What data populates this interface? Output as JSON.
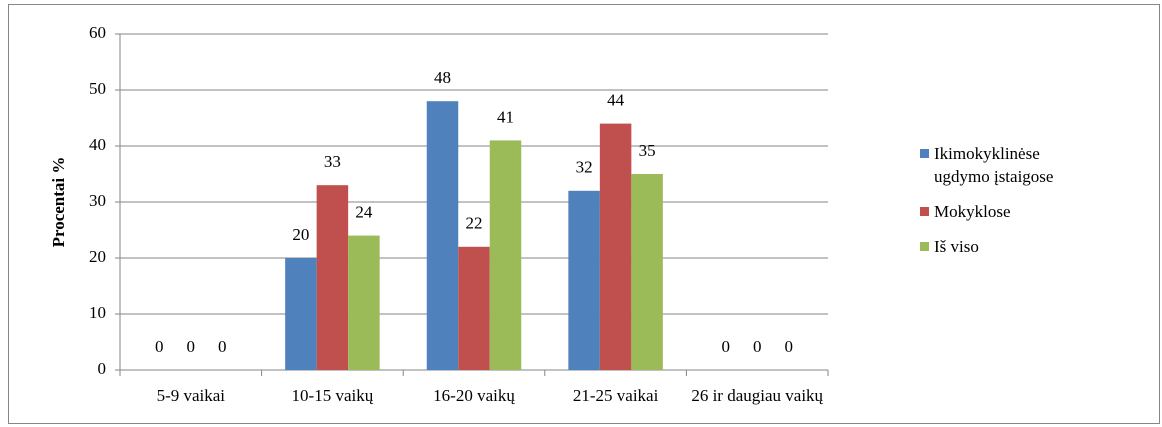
{
  "chart_data": {
    "type": "bar",
    "categories": [
      "5-9 vaikai",
      "10-15 vaikų",
      "16-20 vaikų",
      "21-25 vaikai",
      "26 ir daugiau vaikų"
    ],
    "series": [
      {
        "name": "Ikimokyklinėse ugdymo įstaigose",
        "color": "#4f81bd",
        "values": [
          0,
          20,
          48,
          32,
          0
        ]
      },
      {
        "name": "Mokyklose",
        "color": "#c0504d",
        "values": [
          0,
          33,
          22,
          44,
          0
        ]
      },
      {
        "name": "Iš viso",
        "color": "#9bbb59",
        "values": [
          0,
          24,
          41,
          35,
          0
        ]
      }
    ],
    "ylabel": "Procentai %",
    "ylim": [
      0,
      60
    ],
    "yticks": [
      0,
      10,
      20,
      30,
      40,
      50,
      60
    ],
    "grid": true,
    "legend": "right"
  }
}
